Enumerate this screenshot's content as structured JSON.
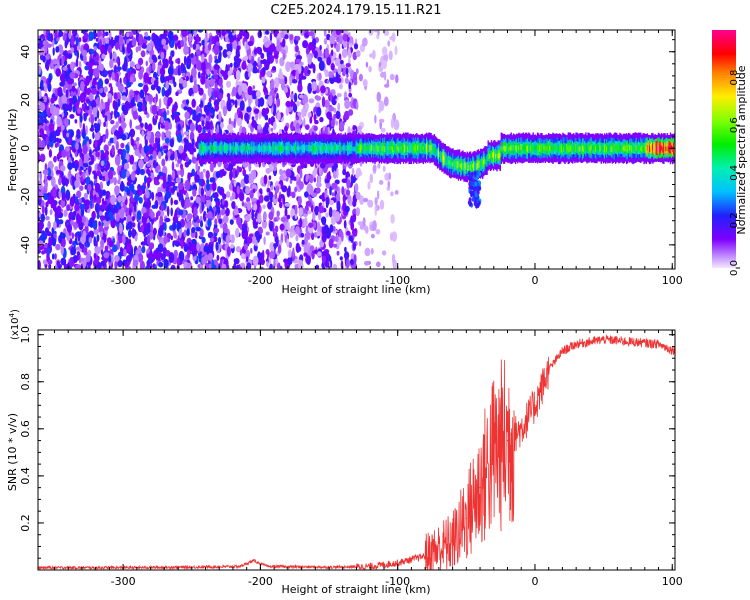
{
  "title": "C2E5.2024.179.15.11.R21",
  "chart_data": [
    {
      "type": "heatmap",
      "name": "spectrogram",
      "xlabel": "Height of straight line (km)",
      "ylabel": "Frequency (Hz)",
      "xlim": [
        -362,
        102
      ],
      "ylim": [
        -50,
        49
      ],
      "xticks": [
        {
          "value": -300,
          "label": "-300"
        },
        {
          "value": -200,
          "label": "-200"
        },
        {
          "value": -100,
          "label": "-100"
        },
        {
          "value": 0,
          "label": "0"
        },
        {
          "value": 100,
          "label": "100"
        }
      ],
      "yticks": [
        {
          "value": -40,
          "label": "-40"
        },
        {
          "value": -20,
          "label": "-20"
        },
        {
          "value": 0,
          "label": "0"
        },
        {
          "value": 20,
          "label": "20"
        },
        {
          "value": 40,
          "label": "40"
        }
      ],
      "colorbar": {
        "label": "Normalized spectral amplitude",
        "range": [
          0,
          1
        ],
        "colormap": "rainbow (purple-blue-cyan-green-yellow-red-magenta)",
        "ticks": [
          {
            "value": 0.0,
            "label": "0.0"
          },
          {
            "value": 0.2,
            "label": "0.2"
          },
          {
            "value": 0.4,
            "label": "0.4"
          },
          {
            "value": 0.6,
            "label": "0.6"
          },
          {
            "value": 0.8,
            "label": "0.8"
          }
        ]
      },
      "features": [
        {
          "description": "broadband scattered noise",
          "x_range": [
            -362,
            -120
          ],
          "amplitude": "0.1-0.4"
        },
        {
          "description": "narrow carrier band",
          "x_range": [
            -240,
            102
          ],
          "freq_hz": 0,
          "amplitude_range": [
            0.2,
            0.95
          ]
        },
        {
          "description": "dip of carrier frequency",
          "x_range": [
            -75,
            -35
          ],
          "freq_hz_min": -22
        }
      ]
    },
    {
      "type": "line",
      "name": "snr",
      "xlabel": "Height of straight line (km)",
      "ylabel": "SNR (10 * v/v)",
      "yscale_label": "(x10",
      "yscale_exp": "4",
      "yscale_close": ")",
      "xlim": [
        -362,
        102
      ],
      "ylim": [
        0,
        1.02
      ],
      "xticks": [
        {
          "value": -300,
          "label": "-300"
        },
        {
          "value": -200,
          "label": "-200"
        },
        {
          "value": -100,
          "label": "-100"
        },
        {
          "value": 0,
          "label": "0"
        },
        {
          "value": 100,
          "label": "100"
        }
      ],
      "yticks": [
        {
          "value": 0.2,
          "label": "0.2"
        },
        {
          "value": 0.4,
          "label": "0.4"
        },
        {
          "value": 0.6,
          "label": "0.6"
        },
        {
          "value": 0.8,
          "label": "0.8"
        },
        {
          "value": 1.0,
          "label": "1.0"
        }
      ],
      "color": "#ee3333",
      "series": [
        {
          "name": "SNR",
          "x": [
            -362,
            -300,
            -250,
            -215,
            -205,
            -195,
            -150,
            -120,
            -100,
            -80,
            -60,
            -50,
            -40,
            -30,
            -20,
            -10,
            0,
            10,
            20,
            30,
            50,
            70,
            90,
            102
          ],
          "y": [
            0.01,
            0.01,
            0.012,
            0.015,
            0.04,
            0.015,
            0.012,
            0.015,
            0.03,
            0.06,
            0.12,
            0.22,
            0.35,
            0.5,
            0.55,
            0.6,
            0.7,
            0.85,
            0.93,
            0.96,
            0.98,
            0.97,
            0.96,
            0.93
          ]
        }
      ]
    }
  ]
}
